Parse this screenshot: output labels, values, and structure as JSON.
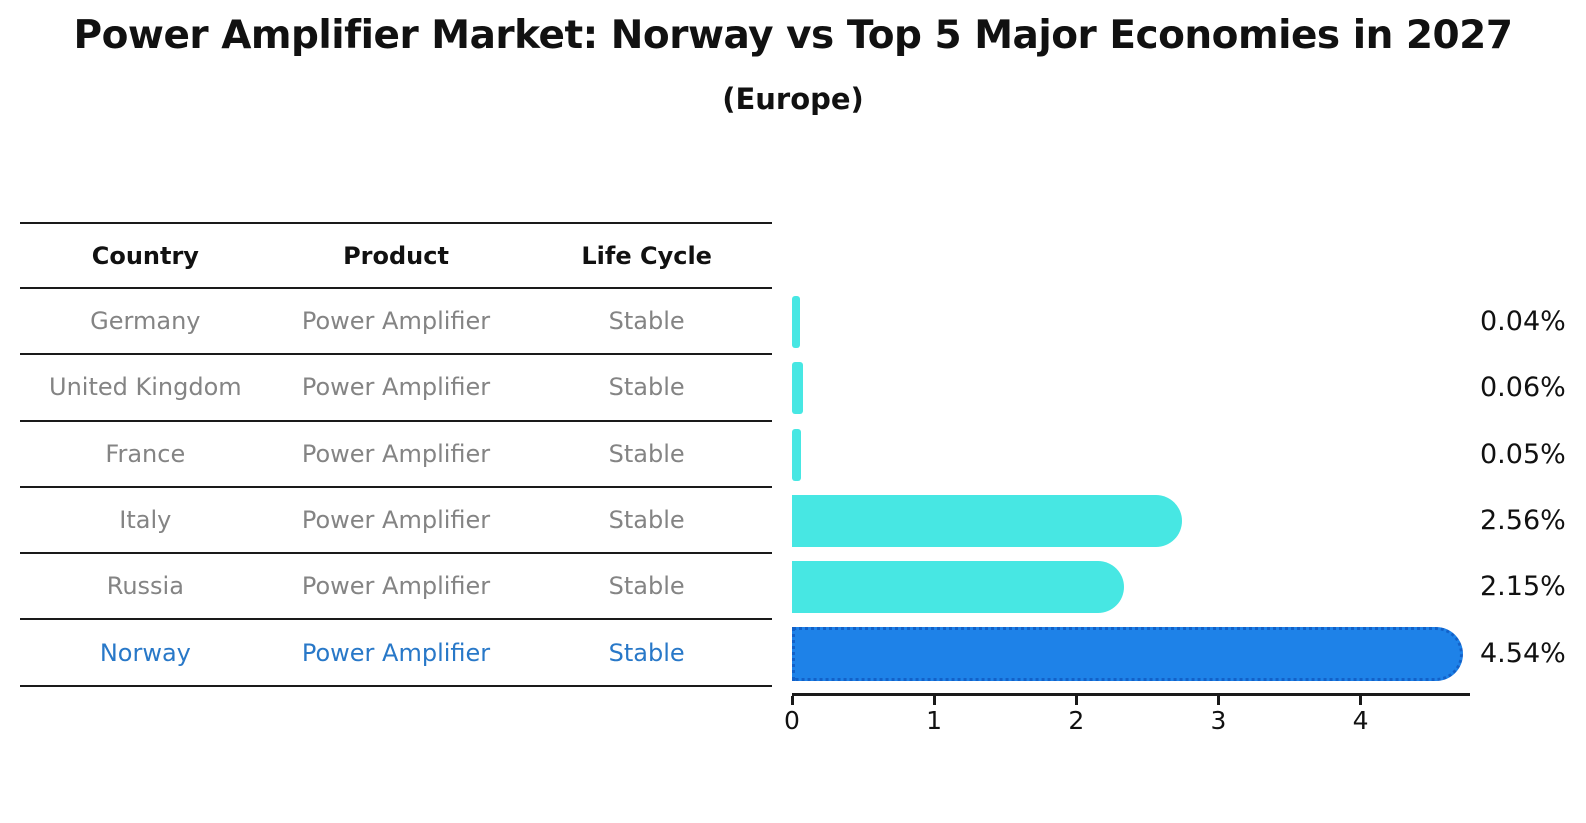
{
  "title": "Power Amplifier Market: Norway vs Top 5 Major Economies in 2027",
  "subtitle": "(Europe)",
  "table": {
    "headers": [
      "Country",
      "Product",
      "Life Cycle"
    ],
    "rows": [
      {
        "country": "Germany",
        "product": "Power Amplifier",
        "life_cycle": "Stable",
        "highlight": false
      },
      {
        "country": "United Kingdom",
        "product": "Power Amplifier",
        "life_cycle": "Stable",
        "highlight": false
      },
      {
        "country": "France",
        "product": "Power Amplifier",
        "life_cycle": "Stable",
        "highlight": false
      },
      {
        "country": "Italy",
        "product": "Power Amplifier",
        "life_cycle": "Stable",
        "highlight": false
      },
      {
        "country": "Russia",
        "product": "Power Amplifier",
        "life_cycle": "Stable",
        "highlight": false
      },
      {
        "country": "Norway",
        "product": "Power Amplifier",
        "life_cycle": "Stable",
        "highlight": true
      }
    ]
  },
  "chart_data": {
    "type": "bar",
    "orientation": "horizontal",
    "title": "Power Amplifier Market: Norway vs Top 5 Major Economies in 2027",
    "subtitle": "(Europe)",
    "categories": [
      "Germany",
      "United Kingdom",
      "France",
      "Italy",
      "Russia",
      "Norway"
    ],
    "values": [
      0.04,
      0.06,
      0.05,
      2.56,
      2.15,
      4.54
    ],
    "value_labels": [
      "0.04%",
      "0.06%",
      "0.05%",
      "2.56%",
      "2.15%",
      "4.54%"
    ],
    "unit": "%",
    "x_ticks": [
      "0",
      "1",
      "2",
      "3",
      "4"
    ],
    "xlim": [
      0,
      4.77
    ],
    "grid": false,
    "legend": "none",
    "highlight_index": 5,
    "bar_color": "#47e7e3",
    "highlight_bar_color": "#1e82e8",
    "highlight_border_color": "#1261c9"
  },
  "colors": {
    "background": "#ffffff",
    "text": "#111111",
    "row_text": "#848484",
    "highlight_text": "#2878c8",
    "line": "#1a1a1a"
  }
}
